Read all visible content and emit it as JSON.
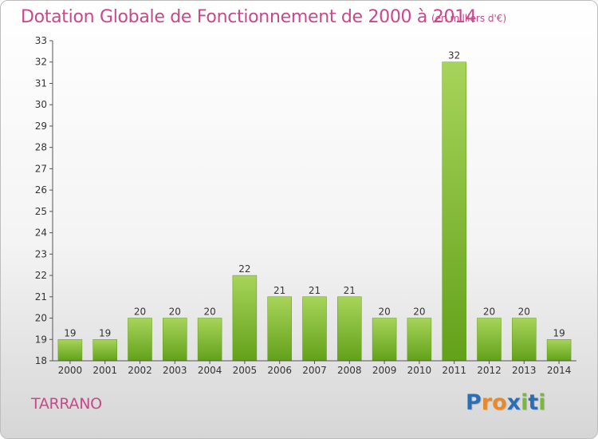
{
  "title": "Dotation Globale de Fonctionnement de 2000 à 2014",
  "unit": "(en milliers d'€)",
  "commune": "TARRANO",
  "logo": {
    "text": "Proxiti",
    "colors": [
      "#2a6fb6",
      "#e8892b",
      "#e8892b",
      "#2a6fb6",
      "#7ab83a",
      "#2a6fb6",
      "#7ab83a"
    ]
  },
  "colors": {
    "bar_light": "#a7d45a",
    "bar_dark": "#63a11a",
    "accent": "#c8488a"
  },
  "chart_data": {
    "type": "bar",
    "categories": [
      "2000",
      "2001",
      "2002",
      "2003",
      "2004",
      "2005",
      "2006",
      "2007",
      "2008",
      "2009",
      "2010",
      "2011",
      "2012",
      "2013",
      "2014"
    ],
    "values": [
      19,
      19,
      20,
      20,
      20,
      22,
      21,
      21,
      21,
      20,
      20,
      32,
      20,
      20,
      19
    ],
    "data_labels": [
      "19",
      "19",
      "20",
      "20",
      "20",
      "22",
      "21",
      "21",
      "21",
      "20",
      "20",
      "32",
      "20",
      "20",
      "19"
    ],
    "ylim": [
      18,
      33
    ],
    "yticks": [
      "18",
      "19",
      "20",
      "21",
      "22",
      "23",
      "24",
      "25",
      "26",
      "27",
      "28",
      "29",
      "30",
      "31",
      "32",
      "33"
    ],
    "grid": false,
    "title": "Dotation Globale de Fonctionnement de 2000 à 2014",
    "xlabel": "",
    "ylabel": ""
  }
}
